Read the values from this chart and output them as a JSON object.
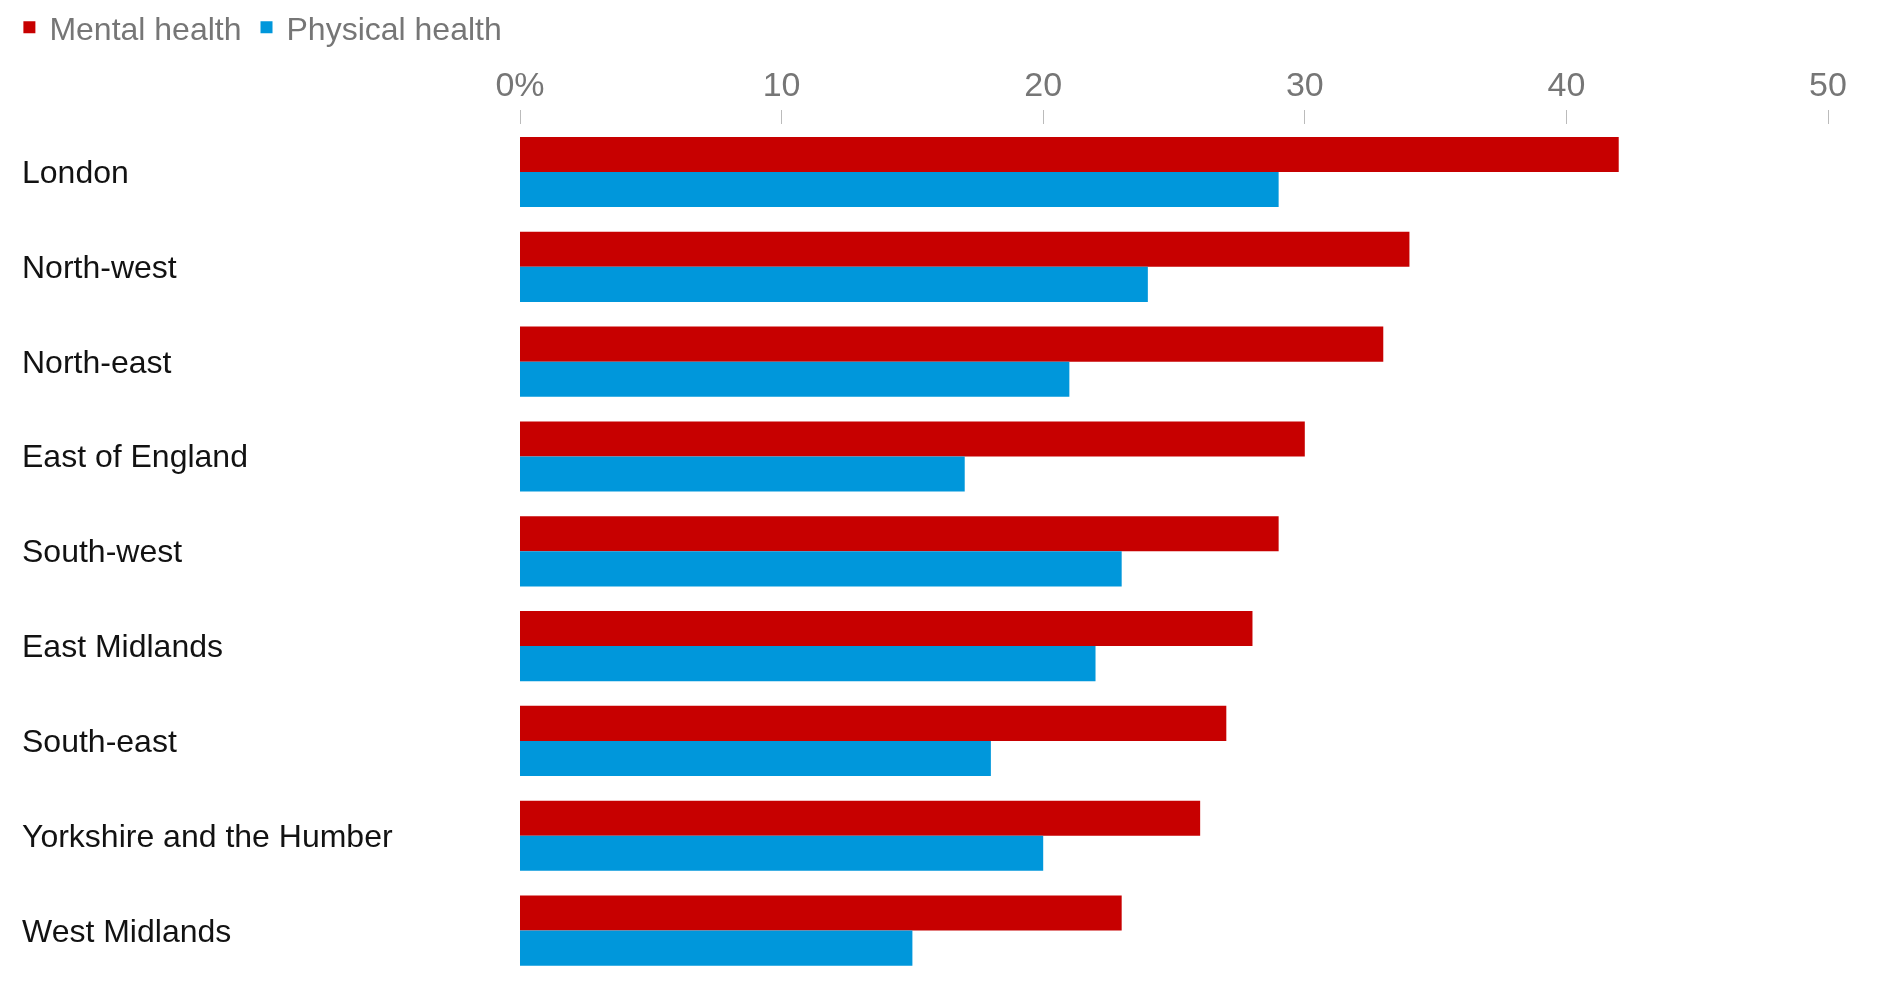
{
  "chart_data": {
    "type": "bar",
    "orientation": "horizontal",
    "categories": [
      "London",
      "North-west",
      "North-east",
      "East of England",
      "South-west",
      "East Midlands",
      "South-east",
      "Yorkshire and the Humber",
      "West Midlands"
    ],
    "series": [
      {
        "name": "Mental health",
        "color": "#c70000",
        "values": [
          42,
          34,
          33,
          30,
          29,
          28,
          27,
          26,
          23
        ]
      },
      {
        "name": "Physical health",
        "color": "#0097db",
        "values": [
          29,
          24,
          21,
          17,
          23,
          22,
          18,
          20,
          15
        ]
      }
    ],
    "xlim": [
      0,
      50
    ],
    "xticks": [
      {
        "value": 0,
        "label": "0%"
      },
      10,
      20,
      30,
      40,
      50
    ],
    "legend": "top left"
  }
}
